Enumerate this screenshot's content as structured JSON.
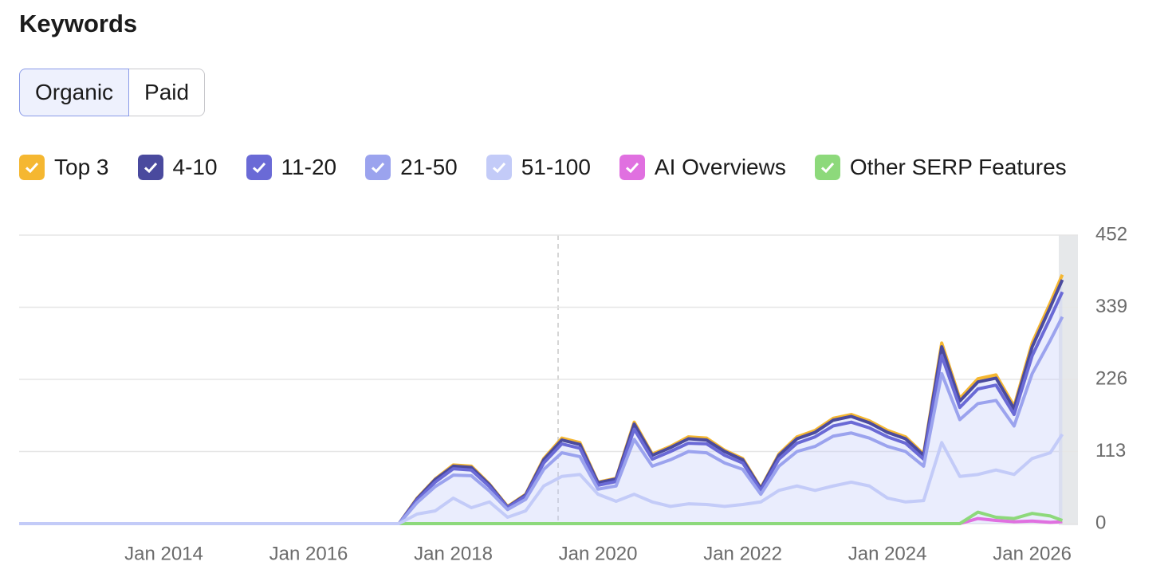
{
  "header": {
    "title": "Keywords",
    "tabs": [
      "Organic",
      "Paid"
    ]
  },
  "chart_data": {
    "type": "stacked-area",
    "x": [
      "2012-01",
      "2017-04",
      "2017-07",
      "2017-10",
      "2018-01",
      "2018-04",
      "2018-07",
      "2018-10",
      "2019-01",
      "2019-04",
      "2019-07",
      "2019-10",
      "2020-01",
      "2020-04",
      "2020-07",
      "2020-10",
      "2021-01",
      "2021-04",
      "2021-07",
      "2021-10",
      "2022-01",
      "2022-04",
      "2022-07",
      "2022-10",
      "2023-01",
      "2023-04",
      "2023-07",
      "2023-10",
      "2024-01",
      "2024-04",
      "2024-07",
      "2024-10",
      "2025-01",
      "2025-04",
      "2025-07",
      "2025-10",
      "2026-01",
      "2026-04",
      "2026-06"
    ],
    "series": [
      {
        "name": "Top 3",
        "color": "#f5b731",
        "kind": "area",
        "values": [
          0,
          0,
          1,
          1,
          2,
          2,
          1,
          1,
          1,
          2,
          3,
          3,
          1,
          1,
          3,
          2,
          2,
          3,
          3,
          2,
          2,
          1,
          2,
          3,
          3,
          3,
          3,
          3,
          3,
          3,
          2,
          6,
          4,
          5,
          5,
          4,
          6,
          7,
          8
        ]
      },
      {
        "name": "4-10",
        "color": "#4a4a9e",
        "kind": "area",
        "values": [
          0,
          0,
          2,
          4,
          4,
          4,
          3,
          1,
          2,
          5,
          6,
          6,
          4,
          4,
          8,
          6,
          6,
          7,
          6,
          6,
          5,
          3,
          6,
          7,
          7,
          9,
          9,
          8,
          7,
          7,
          6,
          14,
          10,
          11,
          11,
          9,
          14,
          17,
          19
        ]
      },
      {
        "name": "11-20",
        "color": "#6a6ad6",
        "kind": "area",
        "values": [
          0,
          0,
          4,
          7,
          10,
          9,
          7,
          3,
          5,
          10,
          14,
          13,
          6,
          7,
          16,
          11,
          13,
          13,
          14,
          12,
          10,
          6,
          11,
          13,
          15,
          16,
          17,
          16,
          15,
          13,
          11,
          28,
          19,
          23,
          24,
          18,
          28,
          35,
          39
        ]
      },
      {
        "name": "21-50",
        "color": "#9ba3ee",
        "kind": "area",
        "values": [
          0,
          0,
          18,
          38,
          36,
          50,
          17,
          12,
          18,
          26,
          37,
          28,
          8,
          24,
          86,
          56,
          73,
          82,
          81,
          68,
          55,
          12,
          38,
          54,
          69,
          78,
          77,
          75,
          81,
          79,
          54,
          108,
          89,
          111,
          109,
          76,
          133,
          176,
          184
        ]
      },
      {
        "name": "51-100",
        "color": "#c3cbf8",
        "kind": "area",
        "values": [
          0,
          0,
          15,
          20,
          40,
          25,
          34,
          10,
          20,
          59,
          74,
          77,
          46,
          35,
          46,
          34,
          27,
          31,
          30,
          27,
          30,
          34,
          52,
          59,
          52,
          59,
          65,
          59,
          40,
          34,
          36,
          127,
          74,
          77,
          84,
          77,
          102,
          111,
          140
        ]
      },
      {
        "name": "AI Overviews",
        "color": "#e070e0",
        "kind": "line",
        "values": [
          null,
          null,
          null,
          null,
          null,
          null,
          null,
          null,
          null,
          null,
          null,
          null,
          null,
          null,
          null,
          null,
          null,
          null,
          null,
          null,
          null,
          null,
          null,
          null,
          null,
          null,
          null,
          null,
          null,
          null,
          null,
          null,
          0,
          8,
          5,
          3,
          4,
          2,
          3
        ]
      },
      {
        "name": "Other SERP Features",
        "color": "#8dd97b",
        "kind": "line",
        "values": [
          0,
          0,
          0,
          0,
          0,
          0,
          0,
          0,
          0,
          0,
          0,
          0,
          0,
          0,
          0,
          0,
          0,
          0,
          0,
          0,
          0,
          0,
          0,
          0,
          0,
          0,
          0,
          0,
          0,
          0,
          0,
          0,
          0,
          18,
          10,
          8,
          16,
          12,
          5
        ]
      }
    ],
    "xlim": [
      "2012-01",
      "2026-07"
    ],
    "xticks": [
      {
        "value": "2014-01",
        "label": "Jan 2014"
      },
      {
        "value": "2016-01",
        "label": "Jan 2016"
      },
      {
        "value": "2018-01",
        "label": "Jan 2018"
      },
      {
        "value": "2020-01",
        "label": "Jan 2020"
      },
      {
        "value": "2022-01",
        "label": "Jan 2022"
      },
      {
        "value": "2024-01",
        "label": "Jan 2024"
      },
      {
        "value": "2026-01",
        "label": "Jan 2026"
      }
    ],
    "ylim": [
      0,
      452
    ],
    "yticks": [
      0,
      113,
      226,
      339,
      452
    ],
    "grid": true
  }
}
